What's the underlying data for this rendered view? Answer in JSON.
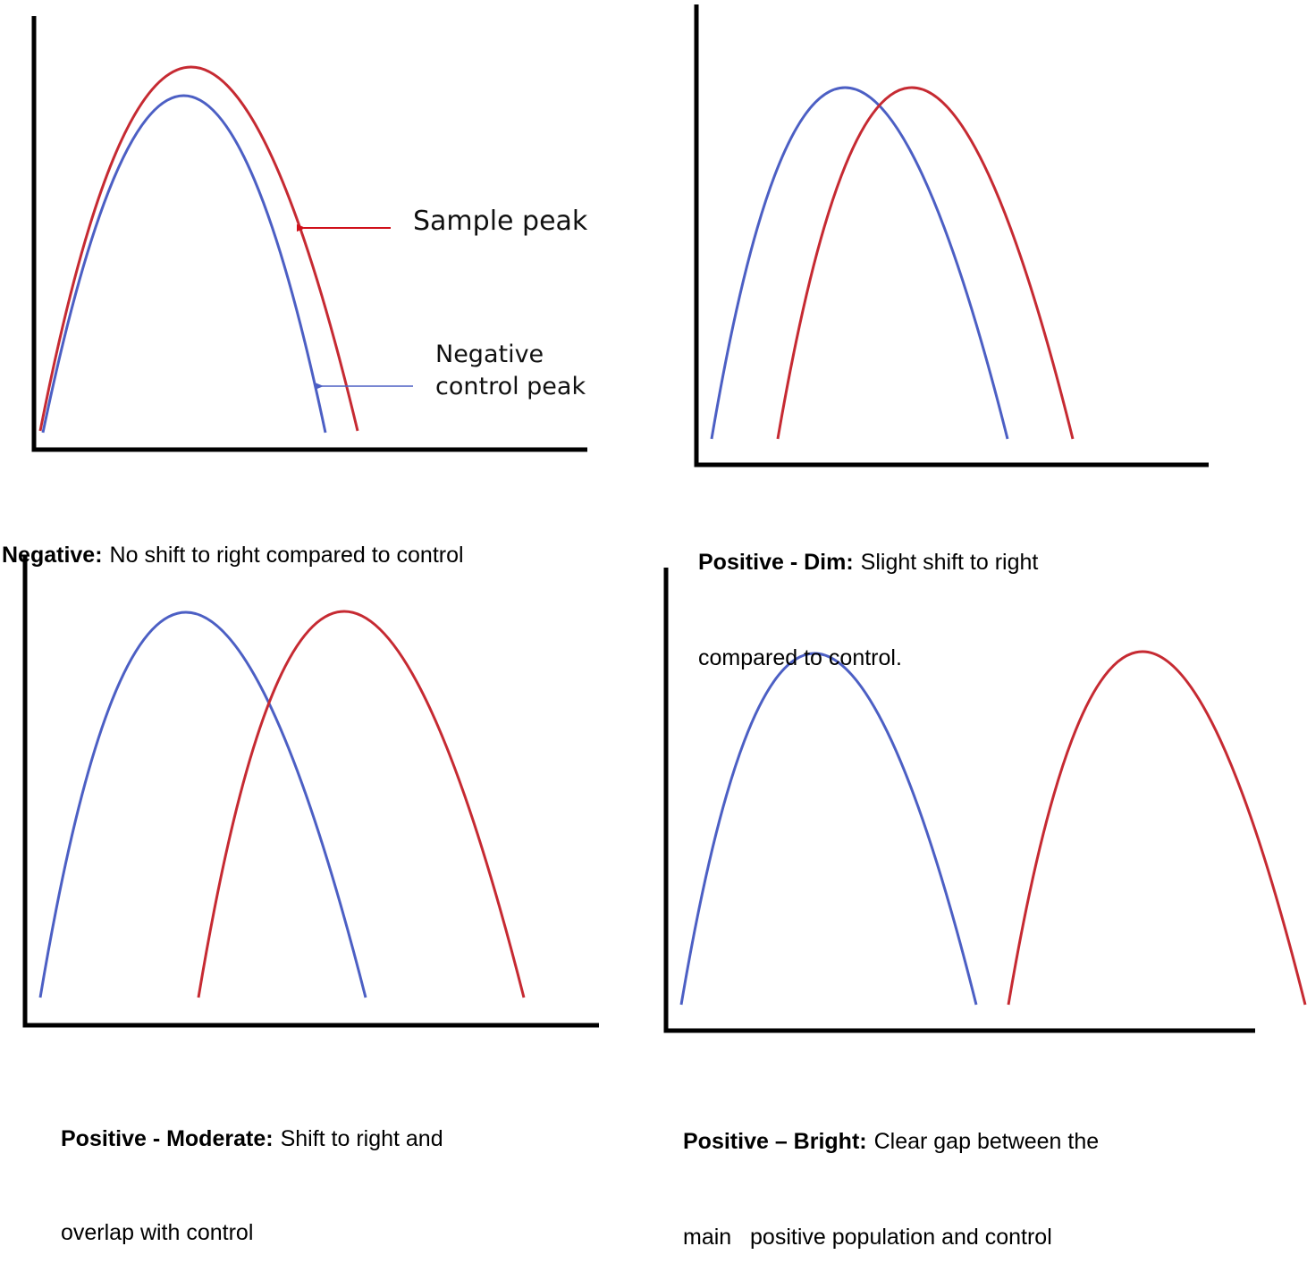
{
  "panels": [
    {
      "label": "Negative:",
      "text_lines": [
        "No shift to right compared to control"
      ],
      "annotations": {
        "sample": [
          "Sample peak"
        ],
        "control": [
          "Negative",
          "control peak"
        ]
      }
    },
    {
      "label": "Positive - Dim:",
      "text_lines": [
        "Slight shift to right",
        "compared to control."
      ]
    },
    {
      "label": "Positive - Moderate:",
      "text_lines": [
        "Shift to right and",
        "overlap with control"
      ]
    },
    {
      "label": "Positive – Bright:",
      "text_lines": [
        "Clear gap between the",
        "main   positive population and control"
      ]
    }
  ]
}
